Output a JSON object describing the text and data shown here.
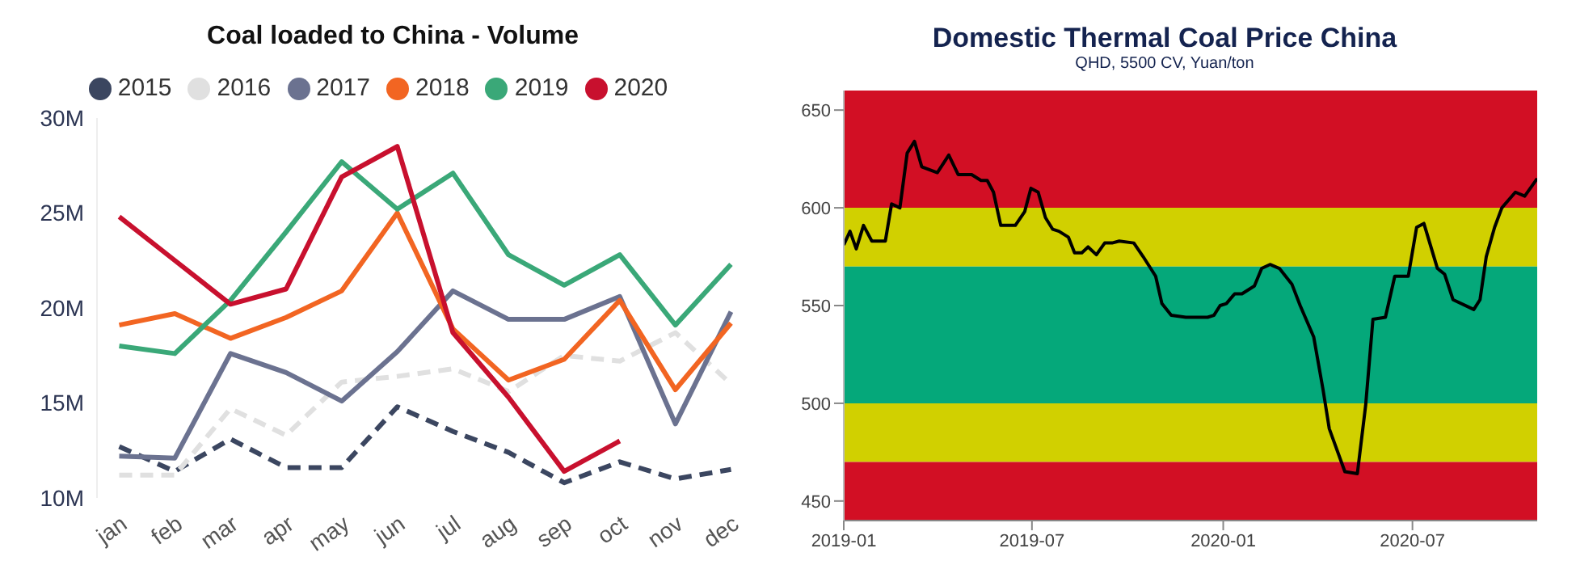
{
  "chart_data": [
    {
      "type": "line",
      "title": "Coal loaded to China - Volume",
      "categories": [
        "jan",
        "feb",
        "mar",
        "apr",
        "may",
        "jun",
        "jul",
        "aug",
        "sep",
        "oct",
        "nov",
        "dec"
      ],
      "series": [
        {
          "name": "2015",
          "color": "#3b4660",
          "line_style": "dashed",
          "values": [
            12.7,
            11.4,
            13.1,
            11.6,
            11.6,
            14.8,
            13.5,
            12.4,
            10.8,
            11.9,
            11.0,
            11.5
          ]
        },
        {
          "name": "2016",
          "color": "#e0e0e0",
          "line_style": "dashed",
          "values": [
            11.2,
            11.2,
            14.7,
            13.3,
            16.1,
            16.4,
            16.8,
            15.6,
            17.5,
            17.2,
            18.7,
            16.0
          ]
        },
        {
          "name": "2017",
          "color": "#6b7290",
          "values": [
            12.2,
            12.1,
            17.6,
            16.6,
            15.1,
            17.7,
            20.9,
            19.4,
            19.4,
            20.6,
            13.9,
            19.8
          ]
        },
        {
          "name": "2018",
          "color": "#f26522",
          "values": [
            19.1,
            19.7,
            18.4,
            19.5,
            20.9,
            25.0,
            18.9,
            16.2,
            17.3,
            20.4,
            15.7,
            19.2
          ]
        },
        {
          "name": "2019",
          "color": "#3aa878",
          "values": [
            18.0,
            17.6,
            20.4,
            24.0,
            27.7,
            25.2,
            27.1,
            22.8,
            21.2,
            22.8,
            19.1,
            22.3
          ]
        },
        {
          "name": "2020",
          "color": "#c8102e",
          "values": [
            24.8,
            22.5,
            20.2,
            21.0,
            26.9,
            28.5,
            18.7,
            15.3,
            11.4,
            13.0,
            null,
            null
          ]
        }
      ],
      "ylim": [
        10,
        30
      ],
      "yticks": [
        {
          "value": 10,
          "label": "10M"
        },
        {
          "value": 15,
          "label": "15M"
        },
        {
          "value": 20,
          "label": "20M"
        },
        {
          "value": 25,
          "label": "25M"
        },
        {
          "value": 30,
          "label": "30M"
        }
      ],
      "grid": false,
      "legend": "top",
      "marker": "none",
      "line_style": "solid"
    },
    {
      "type": "line",
      "title": "Domestic Thermal Coal Price China",
      "subtitle": "QHD, 5500 CV, Yuan/ton",
      "x": [
        "2019-01-01",
        "2019-01-07",
        "2019-01-13",
        "2019-01-20",
        "2019-01-28",
        "2019-02-10",
        "2019-02-16",
        "2019-02-24",
        "2019-03-03",
        "2019-03-10",
        "2019-03-17",
        "2019-04-01",
        "2019-04-12",
        "2019-04-21",
        "2019-05-04",
        "2019-05-13",
        "2019-05-19",
        "2019-05-25",
        "2019-06-01",
        "2019-06-15",
        "2019-06-24",
        "2019-06-30",
        "2019-07-07",
        "2019-07-14",
        "2019-07-21",
        "2019-07-27",
        "2019-08-05",
        "2019-08-11",
        "2019-08-18",
        "2019-08-24",
        "2019-09-01",
        "2019-09-09",
        "2019-09-16",
        "2019-09-23",
        "2019-10-07",
        "2019-10-16",
        "2019-10-28",
        "2019-11-03",
        "2019-11-12",
        "2019-11-26",
        "2019-12-06",
        "2019-12-17",
        "2019-12-23",
        "2019-12-29",
        "2020-01-04",
        "2020-01-12",
        "2020-01-19",
        "2020-01-31",
        "2020-02-07",
        "2020-02-15",
        "2020-02-24",
        "2020-03-07",
        "2020-03-15",
        "2020-03-28",
        "2020-04-06",
        "2020-04-12",
        "2020-04-27",
        "2020-05-09",
        "2020-05-17",
        "2020-05-24",
        "2020-06-05",
        "2020-06-14",
        "2020-06-27",
        "2020-07-05",
        "2020-07-12",
        "2020-07-25",
        "2020-08-01",
        "2020-08-09",
        "2020-08-29",
        "2020-09-04",
        "2020-09-10",
        "2020-09-18",
        "2020-09-25",
        "2020-10-08",
        "2020-10-17",
        "2020-10-29"
      ],
      "series": [
        {
          "color": "#000000",
          "values": [
            581,
            588,
            579,
            591,
            583,
            583,
            602,
            600,
            628,
            634,
            621,
            618,
            627,
            617,
            617,
            614,
            614,
            608,
            591,
            591,
            598,
            610,
            608,
            595,
            589,
            588,
            585,
            577,
            577,
            580,
            576,
            582,
            582,
            583,
            582,
            575,
            565,
            551,
            545,
            544,
            544,
            544,
            545,
            550,
            551,
            556,
            556,
            560,
            569,
            571,
            569,
            561,
            550,
            534,
            507,
            487,
            465,
            464,
            499,
            543,
            544,
            565,
            565,
            590,
            592,
            569,
            566,
            553,
            548,
            553,
            575,
            590,
            600,
            608,
            606,
            615
          ]
        }
      ],
      "xlim": [
        "2019-01-01",
        "2020-10-29"
      ],
      "xticks": [
        "2019-01",
        "2019-07",
        "2020-01",
        "2020-07"
      ],
      "ylim": [
        440,
        660
      ],
      "yticks": [
        450,
        500,
        550,
        600,
        650
      ],
      "bands": [
        {
          "axis": "y",
          "from": 600,
          "to": 660,
          "color": "#d20f24"
        },
        {
          "axis": "y",
          "from": 570,
          "to": 600,
          "color": "#d1d000"
        },
        {
          "axis": "y",
          "from": 500,
          "to": 570,
          "color": "#05a87a"
        },
        {
          "axis": "y",
          "from": 470,
          "to": 500,
          "color": "#d1d000"
        },
        {
          "axis": "y",
          "from": 440,
          "to": 470,
          "color": "#d20f24"
        }
      ],
      "grid": false,
      "legend": false,
      "marker": "none",
      "line_style": "solid"
    }
  ]
}
